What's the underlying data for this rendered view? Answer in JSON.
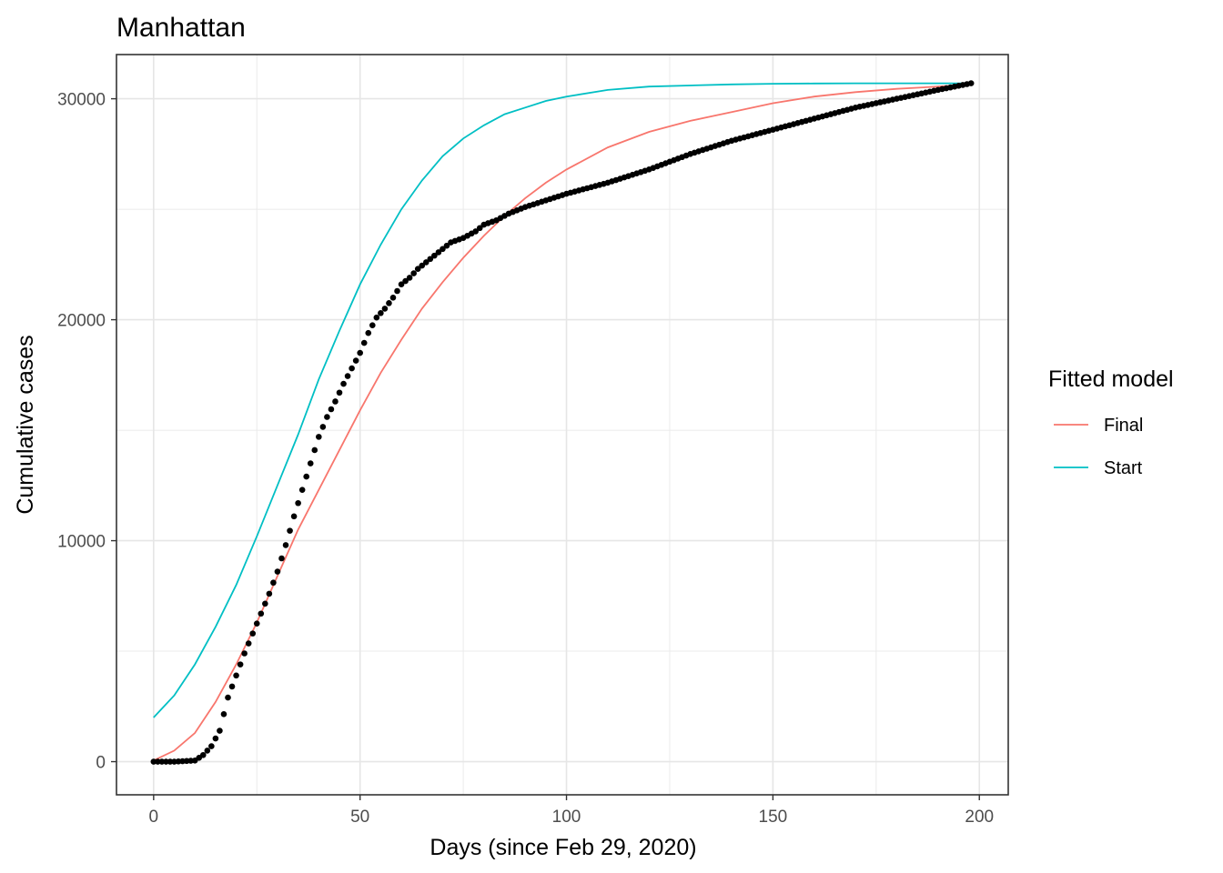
{
  "chart_data": {
    "type": "line",
    "title": "Manhattan",
    "xlabel": "Days (since Feb 29, 2020)",
    "ylabel": "Cumulative cases",
    "xlim": [
      -9,
      207
    ],
    "ylim": [
      -1500,
      32000
    ],
    "x_ticks": [
      0,
      50,
      100,
      150,
      200
    ],
    "x_tick_labels": [
      "0",
      "50",
      "100",
      "150",
      "200"
    ],
    "y_ticks": [
      0,
      10000,
      20000,
      30000
    ],
    "y_tick_labels": [
      "0",
      "10000",
      "20000",
      "30000"
    ],
    "grid": true,
    "legend": {
      "title": "Fitted model",
      "position": "right",
      "entries": [
        {
          "label": "Final",
          "color": "#F8766D"
        },
        {
          "label": "Start",
          "color": "#00BFC4"
        }
      ]
    },
    "series": [
      {
        "name": "Final",
        "color": "#F8766D",
        "x": [
          0,
          5,
          10,
          15,
          20,
          25,
          30,
          35,
          40,
          45,
          50,
          55,
          60,
          65,
          70,
          75,
          80,
          85,
          90,
          95,
          100,
          110,
          120,
          130,
          140,
          150,
          160,
          170,
          180,
          190,
          198
        ],
        "y": [
          50,
          500,
          1300,
          2700,
          4400,
          6300,
          8400,
          10500,
          12300,
          14100,
          15900,
          17600,
          19100,
          20500,
          21700,
          22800,
          23800,
          24700,
          25500,
          26200,
          26800,
          27800,
          28500,
          29000,
          29400,
          29800,
          30100,
          30300,
          30450,
          30550,
          30650
        ]
      },
      {
        "name": "Start",
        "color": "#00BFC4",
        "x": [
          0,
          5,
          10,
          15,
          20,
          25,
          30,
          35,
          40,
          45,
          50,
          55,
          60,
          65,
          70,
          75,
          80,
          85,
          90,
          95,
          100,
          110,
          120,
          130,
          140,
          150,
          160,
          170,
          180,
          190,
          198
        ],
        "y": [
          2000,
          3000,
          4400,
          6100,
          8000,
          10200,
          12500,
          14800,
          17300,
          19500,
          21600,
          23400,
          25000,
          26300,
          27400,
          28200,
          28800,
          29300,
          29600,
          29900,
          30100,
          30400,
          30550,
          30600,
          30650,
          30680,
          30690,
          30700,
          30700,
          30700,
          30700
        ]
      },
      {
        "name": "",
        "kind": "points",
        "color": "#000000",
        "x": [
          0,
          5,
          10,
          12,
          14,
          16,
          18,
          20,
          22,
          24,
          26,
          28,
          30,
          32,
          34,
          36,
          38,
          40,
          42,
          44,
          46,
          48,
          50,
          52,
          54,
          56,
          58,
          60,
          62,
          64,
          66,
          68,
          70,
          72,
          75,
          78,
          80,
          83,
          86,
          90,
          95,
          100,
          110,
          120,
          130,
          140,
          150,
          160,
          170,
          180,
          190,
          198
        ],
        "y": [
          0,
          0,
          50,
          300,
          700,
          1400,
          2900,
          3900,
          4900,
          5800,
          6700,
          7600,
          8600,
          9800,
          11100,
          12300,
          13500,
          14700,
          15600,
          16300,
          17100,
          17800,
          18500,
          19400,
          20100,
          20500,
          21000,
          21600,
          21900,
          22300,
          22600,
          22900,
          23200,
          23500,
          23700,
          24000,
          24300,
          24500,
          24800,
          25100,
          25400,
          25700,
          26200,
          26800,
          27500,
          28100,
          28600,
          29100,
          29600,
          30000,
          30400,
          30700
        ]
      }
    ]
  }
}
